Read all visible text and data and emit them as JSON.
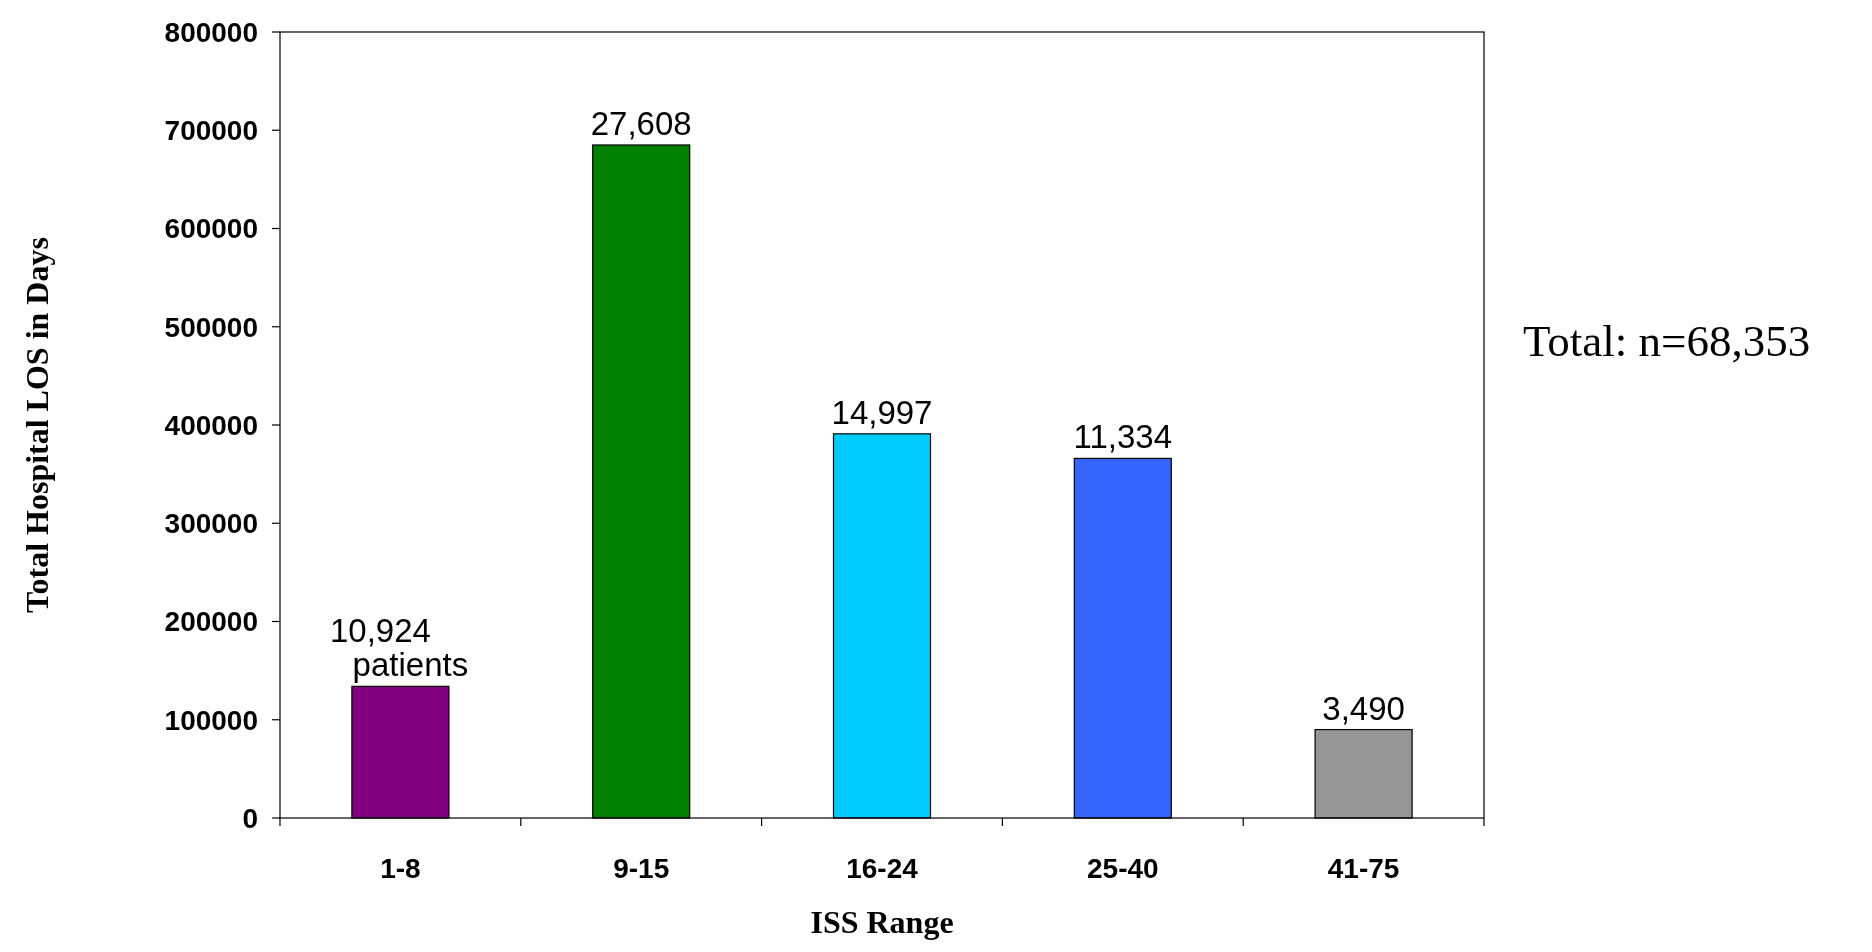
{
  "chart_data": {
    "type": "bar",
    "xlabel": "ISS Range",
    "ylabel": "Total Hospital LOS in Days",
    "categories": [
      "1-8",
      "9-15",
      "16-24",
      "25-40",
      "41-75"
    ],
    "values": [
      134000,
      685000,
      391000,
      366000,
      90000
    ],
    "colors": [
      "#800080",
      "#008000",
      "#00ccff",
      "#3366ff",
      "#969696"
    ],
    "ylim": [
      0,
      800000
    ],
    "yticks": [
      0,
      100000,
      200000,
      300000,
      400000,
      500000,
      600000,
      700000,
      800000
    ],
    "grid": false,
    "annotations": [
      {
        "text": "10,924\npatients",
        "x": "1-8",
        "y": 134000
      },
      {
        "text": "27,608",
        "x": "9-15",
        "y": 685000
      },
      {
        "text": "14,997",
        "x": "16-24",
        "y": 391000
      },
      {
        "text": "11,334",
        "x": "25-40",
        "y": 366000
      },
      {
        "text": "3,490",
        "x": "41-75",
        "y": 90000
      },
      "Total: n=68,353"
    ]
  }
}
